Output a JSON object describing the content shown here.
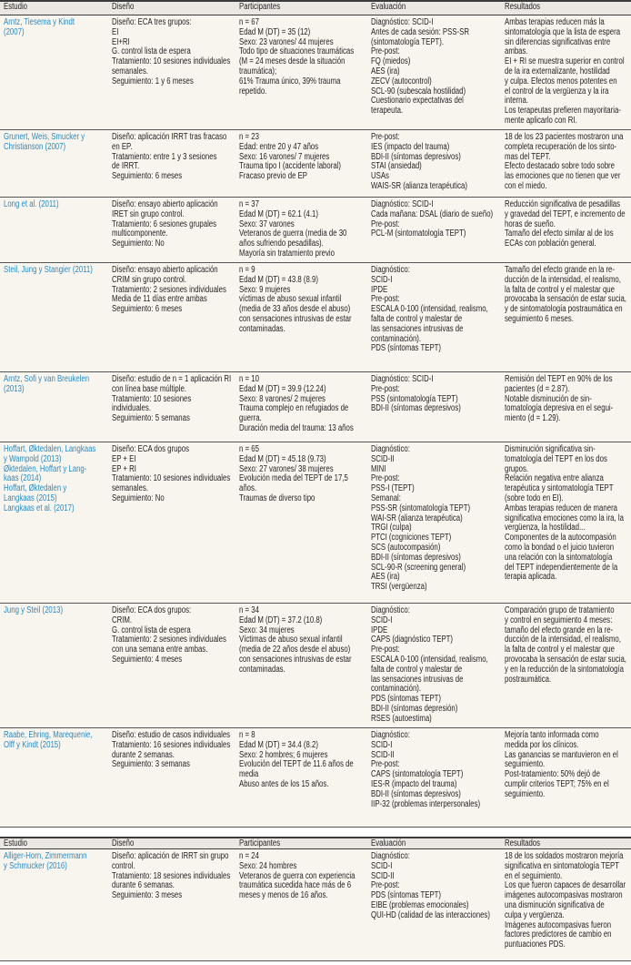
{
  "columns": [
    "Estudio",
    "Diseño",
    "Participantes",
    "Evaluación",
    "Resultados"
  ],
  "colors": {
    "study_link": "#2b8bc2",
    "background": "#f8f4ee",
    "header": "#ebe8e4"
  },
  "table1": {
    "rows": [
      {
        "estudio": [
          "Arntz, Tiesema y Kindt",
          "(2007)"
        ],
        "diseno": [
          "Diseño: ECA tres grupos:",
          "EI",
          "EI+RI",
          "G. control lista de espera",
          "Tratamiento: 10 sesiones individuales",
          "semanales.",
          "Seguimiento: 1 y 6 meses"
        ],
        "participantes": [
          "n = 67",
          "Edad M (DT) = 35 (12)",
          "Sexo: 23 varones/ 44 mujeres",
          "Todo tipo de situaciones traumáticas",
          "(M = 24 meses desde la situación",
          "traumática);",
          "61% Trauma único, 39% trauma",
          "repetido."
        ],
        "evaluacion": [
          "Diagnóstico: SCID-I",
          "Antes de cada sesión: PSS-SR",
          "(sintomatología TEPT).",
          "Pre-post:",
          "FQ (miedos)",
          "AES (ira)",
          "ZECV (autocontrol)",
          "SCL-90 (subescala hostilidad)",
          "Cuestionario expectativas del",
          "terapeuta."
        ],
        "resultados": [
          "Ambas terapias reducen más la",
          "sintomatología que la lista de espera",
          "sin diferencias significativas entre",
          "ambas.",
          "EI + RI se muestra superior en control",
          "de la ira externalizante, hostilidad",
          "y culpa. Efectos menos potentes en",
          "el control de la vergüenza y la ira",
          "interna.",
          "Los terapeutas prefieren mayoritaria-",
          "mente aplicarlo con RI."
        ]
      },
      {
        "estudio": [
          "Grunert, Weis, Smucker y",
          "Christianson (2007)"
        ],
        "diseno": [
          "Diseño: aplicación IRRT tras fracaso",
          "en EP.",
          "Tratamiento: entre 1 y 3 sesiones",
          "de IRRT.",
          "Seguimiento: 6 meses"
        ],
        "participantes": [
          "n = 23",
          "Edad: entre 20 y 47 años",
          "Sexo: 16 varones/ 7 mujeres",
          "Trauma tipo I (accidente laboral)",
          "Fracaso previo de EP"
        ],
        "evaluacion": [
          "Pre-post:",
          "IES (impacto del trauma)",
          "BDI-II (síntomas depresivos)",
          "STAI (ansiedad)",
          "USAs",
          "WAIS-SR (alianza terapéutica)"
        ],
        "resultados": [
          "18 de los 23 pacientes mostraron una",
          "completa recuperación de los sinto-",
          "mas del TEPT.",
          "Efecto destacado sobre todo sobre",
          "las emociones que no tienen que ver",
          "con el miedo."
        ]
      },
      {
        "estudio": [
          "Long et al. (2011)"
        ],
        "diseno": [
          "Diseño: ensayo abierto aplicación",
          "IRET sin grupo control.",
          "Tratamiento: 6 sesiones grupales",
          "multicomponente.",
          "Seguimiento: No"
        ],
        "participantes": [
          "n = 37",
          "Edad M (DT) = 62.1 (4.1)",
          "Sexo: 37 varones",
          "Veteranos de guerra (media de 30",
          "años sufriendo pesadillas).",
          "Mayoría sin tratamiento previo"
        ],
        "evaluacion": [
          "Diagnóstico: SCID-I",
          "Cada mañana: DSAL (diario de sueño)",
          "Pre-post:",
          "PCL-M (sintomatología TEPT)"
        ],
        "resultados": [
          "Reducción significativa de pesadillas",
          "y gravedad del TEPT, e incremento de",
          "horas de sueño.",
          "Tamaño del efecto similar al de los",
          "ECAs con población general."
        ]
      },
      {
        "estudio": [
          "Steil, Jung y Stangier (2011)"
        ],
        "diseno": [
          "Diseño: ensayo abierto aplicación",
          "CRIM sin grupo control.",
          "Tratamiento: 2 sesiones individuales",
          "Media de 11 días entre ambas",
          "Seguimiento: 6 meses"
        ],
        "participantes": [
          "n = 9",
          "Edad M (DT) = 43.8 (8.9)",
          "Sexo: 9 mujeres",
          "víctimas de abuso sexual infantil",
          "(media de 33 años desde el abuso)",
          "con sensaciones intrusivas de estar",
          "contaminadas."
        ],
        "evaluacion": [
          "Diagnóstico:",
          "SCID-I",
          "IPDE",
          "Pre-post:",
          "ESCALA 0-100 (intensidad, realismo,",
          "falta de control y malestar de",
          "las sensaciones intrusivas de",
          "contaminación).",
          "PDS (síntomas TEPT)"
        ],
        "resultados": [
          "Tamaño del efecto grande en la re-",
          "ducción de la intensidad, el realismo,",
          "la falta de control y el malestar que",
          "provocaba la sensación de estar sucia,",
          "y de sintomatología postraumática en",
          "seguimiento 6 meses."
        ]
      },
      {
        "estudio": [
          "Arntz, Sofi y van Breukelen",
          "(2013)"
        ],
        "diseno": [
          "Diseño: estudio de n = 1 aplicación RI",
          "con línea base múltiple.",
          "Tratamiento: 10 sesiones",
          "individuales.",
          "Seguimiento: 5 semanas"
        ],
        "participantes": [
          "n = 10",
          "Edad M (DT) = 39.9 (12.24)",
          "Sexo: 8 varones/ 2 mujeres",
          "Trauma complejo en refugiados de",
          "guerra.",
          "Duración media del trauma: 13 años"
        ],
        "evaluacion": [
          "Diagnóstico: SCID-I",
          "Pre-post:",
          "PSS (sintomatología TEPT)",
          "BDI-II (síntomas depresivos)"
        ],
        "resultados": [
          "Remisión del TEPT en 90% de los",
          "pacientes (d = 2.87).",
          "Notable disminución de sin-",
          "tomatología depresiva en el segui-",
          "miento (d = 1.29)."
        ]
      },
      {
        "estudio": [
          "Hoffart, Øktedalen, Langkaas",
          "y Wampold (2013)",
          "Øktedalen, Hoffart y Lang-",
          "kaas (2014)",
          "Hoffart, Øktedalen y",
          "Langkaas (2015)",
          "Langkaas et al. (2017)"
        ],
        "diseno": [
          "Diseño: ECA dos grupos",
          "EP + EI",
          "EP + RI",
          "Tratamiento: 10 sesiones individuales",
          "semanales.",
          "Seguimiento: No"
        ],
        "participantes": [
          "n = 65",
          "Edad M (DT) = 45.18 (9.73)",
          "Sexo: 27 varones/ 38 mujeres",
          "Evolución media del TEPT de 17,5",
          "años.",
          "Traumas de diverso tipo"
        ],
        "evaluacion": [
          "Diagnóstico:",
          "SCID-II",
          "MINI",
          "Pre-post:",
          "PSS-I (TEPT)",
          "Semanal:",
          "PSS-SR (sintomatología TEPT)",
          "WAI-SR (alianza terapéutica)",
          "TRGI (culpa)",
          "PTCI (cogniciones TEPT)",
          "SCS (autocompasión)",
          "BDI-II (síntomas depresivos)",
          "SCL-90-R (screening general)",
          "AES (ira)",
          "TRSI (vergüenza)"
        ],
        "resultados": [
          "Disminución significativa sin-",
          "tomatología del TEPT en los dos",
          "grupos.",
          "Relación negativa entre alianza",
          "terapéutica y sintomatología TEPT",
          "(sobre todo en EI).",
          "Ambas terapias reducen de manera",
          "significativa emociones como la ira, la",
          "vergüenza, la hostilidad...",
          "Componentes de la autocompasión",
          "como la bondad o el juicio tuvieron",
          "una relación con la sintomatología",
          "del TEPT independientemente de la",
          "terapia aplicada."
        ]
      },
      {
        "estudio": [
          "Jung y Steil (2013)"
        ],
        "diseno": [
          "Diseño: ECA dos grupos:",
          "CRIM.",
          "G. control lista de espera",
          "Tratamiento: 2 sesiones individuales",
          "con una semana entre ambas.",
          "Seguimiento: 4 meses"
        ],
        "participantes": [
          "n = 34",
          "Edad M (DT) = 37.2 (10.8)",
          "Sexo: 34 mujeres",
          "Víctimas de abuso sexual infantil",
          "(media de 22 años desde el abuso)",
          "con sensaciones intrusivas de estar",
          "contaminadas."
        ],
        "evaluacion": [
          "Diagnóstico:",
          "SCID-I",
          "IPDE",
          "CAPS (diagnóstico TEPT)",
          "Pre-post:",
          "ESCALA 0-100 (intensidad, realismo,",
          "falta de control y malestar de",
          "las sensaciones intrusivas de",
          "contaminación).",
          "PDS (síntomas TEPT)",
          "BDI-II (síntomas depresión)",
          "RSES (autoestima)"
        ],
        "resultados": [
          "Comparación grupo de tratamiento",
          "y control en seguimiento 4 meses:",
          "tamaño del efecto grande en la re-",
          "ducción de la intensidad, el realismo,",
          "la falta de control y el malestar que",
          "provocaba la sensación de estar sucia,",
          "y en la reducción de la sintomatología",
          "postraumática."
        ]
      },
      {
        "estudio": [
          "Raabe, Ehring, Marequenie,",
          "Olff y Kindt (2015)"
        ],
        "diseno": [
          "Diseño: estudio de casos individuales",
          "Tratamiento: 16 sesiones individuales",
          "durante 2 semanas.",
          "Seguimiento: 3 semanas"
        ],
        "participantes": [
          "n = 8",
          "Edad M (DT) = 34.4 (8.2)",
          "Sexo: 2 hombres; 6 mujeres",
          "Evolución del TEPT de 11.6 años de",
          "media",
          "Abuso antes de los 15 años."
        ],
        "evaluacion": [
          "Diagnóstico:",
          "SCID-I",
          "SCID-II",
          "Pre-post:",
          "CAPS (sintomatología TEPT)",
          "IES-R (impacto del trauma)",
          "BDI-II (síntomas depresivos)",
          "IIP-32 (problemas interpersonales)"
        ],
        "resultados": [
          "Mejoría tanto informada como",
          "medida por los clínicos.",
          "Las ganancias se mantuvieron en el",
          "seguimiento.",
          "Post-tratamiento: 50% dejó de",
          "cumplir criterios TEPT; 75% en el",
          "seguimiento."
        ]
      }
    ]
  },
  "table2": {
    "rows": [
      {
        "estudio": [
          "Alliger-Horn, Zimmermann",
          "y Schmucker (2016)"
        ],
        "diseno": [
          "Diseño: aplicación de IRRT sin grupo",
          "control.",
          "Tratamiento: 18 sesiones individuales",
          "durante 6 semanas.",
          "Seguimiento: 3 meses"
        ],
        "participantes": [
          "n = 24",
          "Sexo: 24 hombres",
          "Veteranos de guerra con experiencia",
          "traumática sucedida hace más de 6",
          "meses y menos de 16 años."
        ],
        "evaluacion": [
          "Diagnóstico:",
          "SCID-I",
          "SCID-II",
          "Pre-post:",
          "PDS (síntomas TEPT)",
          "EIBE (problemas emocionales)",
          "QUI-HD (calidad de las interacciones)"
        ],
        "resultados": [
          "18 de los soldados mostraron mejoría",
          "significativa en sintomatología TEPT",
          "en el seguimiento.",
          "Los que fueron capaces de desarrollar",
          "imágenes autocompasivas mostraron",
          "una disminución significativa de",
          "culpa y vergüenza.",
          "Imágenes autocompasivas fueron",
          "factores predictores de cambio en",
          "puntuaciones PDS."
        ]
      }
    ]
  }
}
